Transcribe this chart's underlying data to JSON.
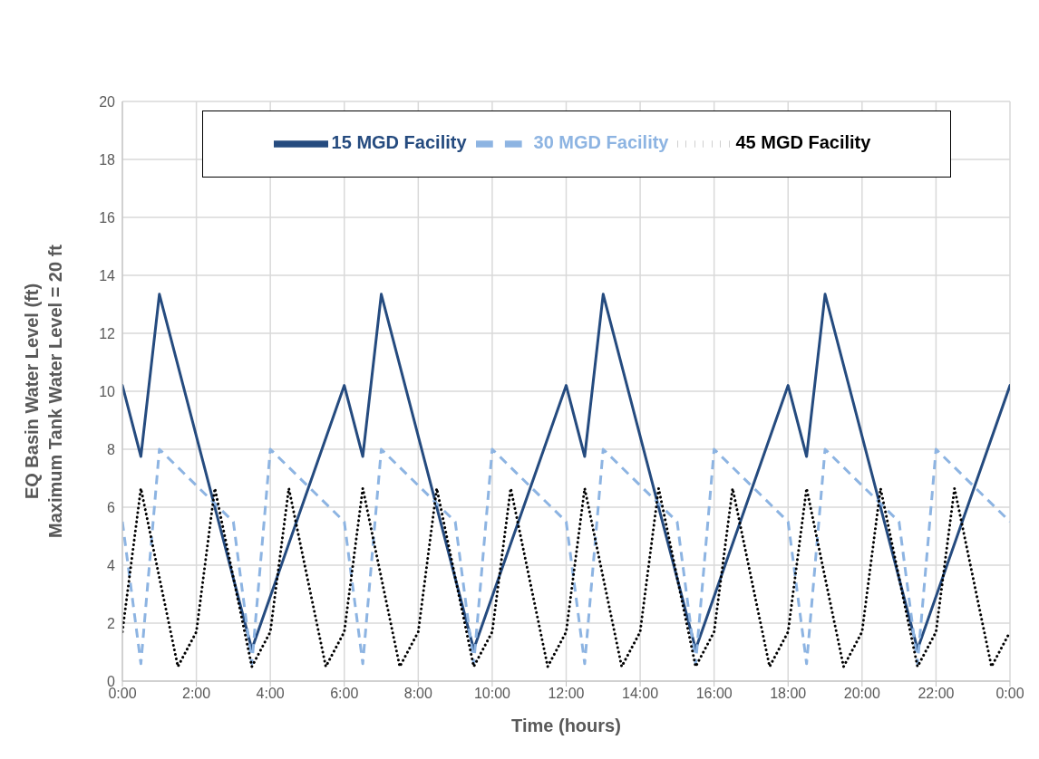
{
  "chart_data": {
    "type": "line",
    "xlabel": "Time (hours)",
    "ylabel": "EQ Basin Water Level (ft)\nMaximum Tank Water Level = 20 ft",
    "xlim": [
      0,
      24
    ],
    "xticks": [
      {
        "value": 0,
        "label": "0:00"
      },
      {
        "value": 2,
        "label": "2:00"
      },
      {
        "value": 4,
        "label": "4:00"
      },
      {
        "value": 6,
        "label": "6:00"
      },
      {
        "value": 8,
        "label": "8:00"
      },
      {
        "value": 10,
        "label": "10:00"
      },
      {
        "value": 12,
        "label": "12:00"
      },
      {
        "value": 14,
        "label": "14:00"
      },
      {
        "value": 16,
        "label": "16:00"
      },
      {
        "value": 18,
        "label": "18:00"
      },
      {
        "value": 20,
        "label": "20:00"
      },
      {
        "value": 22,
        "label": "22:00"
      },
      {
        "value": 24,
        "label": "0:00"
      }
    ],
    "ylim": [
      0,
      20
    ],
    "yticks": [
      0,
      2,
      4,
      6,
      8,
      10,
      12,
      14,
      16,
      18,
      20
    ],
    "grid": true,
    "legend": "top",
    "marker": "none",
    "series": [
      {
        "name": "15 MGD Facility",
        "color": "#254b7f",
        "line_style": "solid",
        "x": [
          0,
          0.5,
          1,
          3.5,
          6,
          6.5,
          7,
          9.5,
          12,
          12.5,
          13,
          15.5,
          18,
          18.5,
          19,
          21.5,
          24
        ],
        "values": [
          10.2,
          7.75,
          13.35,
          1.1,
          10.2,
          7.75,
          13.35,
          1.1,
          10.2,
          7.75,
          13.35,
          1.1,
          10.2,
          7.75,
          13.35,
          1.1,
          10.2
        ]
      },
      {
        "name": "30 MGD Facility",
        "color": "#8db4e2",
        "line_style": "dashed",
        "x": [
          0,
          0.5,
          1,
          3,
          3.5,
          4,
          6,
          6.5,
          7,
          9,
          9.5,
          10,
          12,
          12.5,
          13,
          15,
          15.5,
          16,
          18,
          18.5,
          19,
          21,
          21.5,
          22,
          24
        ],
        "values": [
          5.5,
          0.6,
          8,
          5.5,
          0.6,
          8,
          5.5,
          0.6,
          8,
          5.5,
          0.6,
          8,
          5.5,
          0.6,
          8,
          5.5,
          0.6,
          8,
          5.5,
          0.6,
          8,
          5.5,
          0.6,
          8,
          5.5
        ]
      },
      {
        "name": "45 MGD Facility",
        "color": "#000000",
        "line_style": "dotted",
        "x": [
          0,
          0.5,
          1.5,
          2,
          2.5,
          3.5,
          4,
          4.5,
          5.5,
          6,
          6.5,
          7.5,
          8,
          8.5,
          9.5,
          10,
          10.5,
          11.5,
          12,
          12.5,
          13.5,
          14,
          14.5,
          15.5,
          16,
          16.5,
          17.5,
          18,
          18.5,
          19.5,
          20,
          20.5,
          21.5,
          22,
          22.5,
          23.5,
          24
        ],
        "values": [
          1.7,
          6.65,
          0.5,
          1.7,
          6.65,
          0.5,
          1.7,
          6.65,
          0.5,
          1.7,
          6.65,
          0.5,
          1.7,
          6.65,
          0.5,
          1.7,
          6.65,
          0.5,
          1.7,
          6.65,
          0.5,
          1.7,
          6.65,
          0.5,
          1.7,
          6.65,
          0.5,
          1.7,
          6.65,
          0.5,
          1.7,
          6.65,
          0.5,
          1.7,
          6.65,
          0.5,
          1.7
        ]
      }
    ]
  }
}
